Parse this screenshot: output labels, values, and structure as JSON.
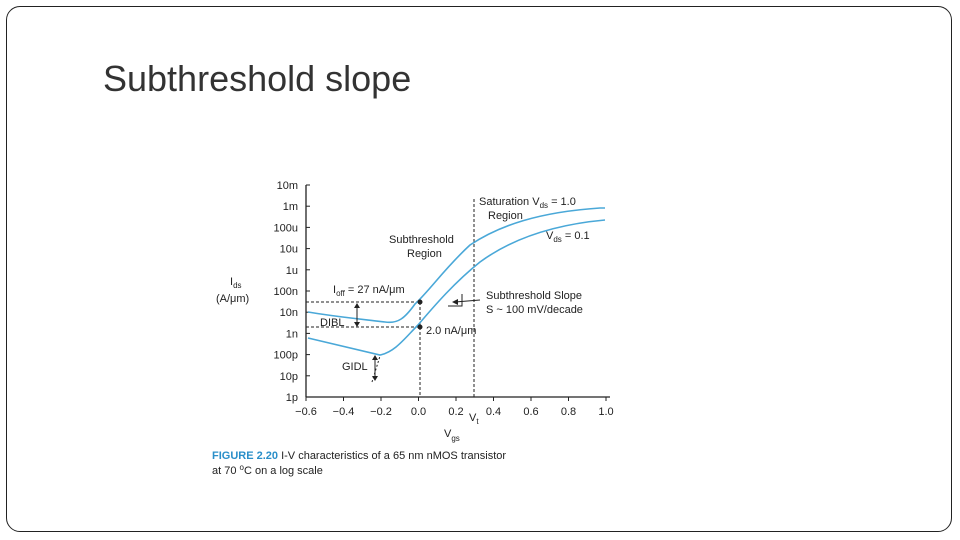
{
  "slide": {
    "title": "Subthreshold slope"
  },
  "figure": {
    "ylabel_main": "I",
    "ylabel_sub": "ds",
    "ylabel_unit": "(A/μm)",
    "xlabel_main": "V",
    "xlabel_sub": "gs",
    "caption_label": "FIGURE 2.20",
    "caption_line1": " I-V characteristics of a 65 nm nMOS transistor",
    "caption_line2_pre": "at 70 ",
    "caption_line2_sup": "o",
    "caption_line2_post": "C on a log scale",
    "y_ticks": [
      "10m",
      "1m",
      "100u",
      "10u",
      "1u",
      "100n",
      "10n",
      "1n",
      "100p",
      "10p",
      "1p"
    ],
    "x_ticks": [
      "−0.6",
      "−0.4",
      "−0.2",
      "0.0",
      "0.2",
      "0.4",
      "0.6",
      "0.8",
      "1.0"
    ],
    "vt_main": "V",
    "vt_sub": "t",
    "annotations": {
      "saturation": "Saturation",
      "vds1_main": "V",
      "vds1_sub": "ds",
      "vds1_val": " = 1.0",
      "region1": "Region",
      "subthreshold": "Subthreshold",
      "region2": "Region",
      "vds01_main": "V",
      "vds01_sub": "ds",
      "vds01_val": " = 0.1",
      "ioff_main": "I",
      "ioff_sub": "off",
      "ioff_val": " = 27 nA/μm",
      "slope1": "Subthreshold Slope",
      "slope2": "S ~ 100 mV/decade",
      "dibl": "DIBL",
      "na2": "2.0 nA/μm",
      "gidl": "GIDL"
    },
    "colors": {
      "curve": "#4aa8d8",
      "caption_label": "#2a8fc9"
    }
  }
}
